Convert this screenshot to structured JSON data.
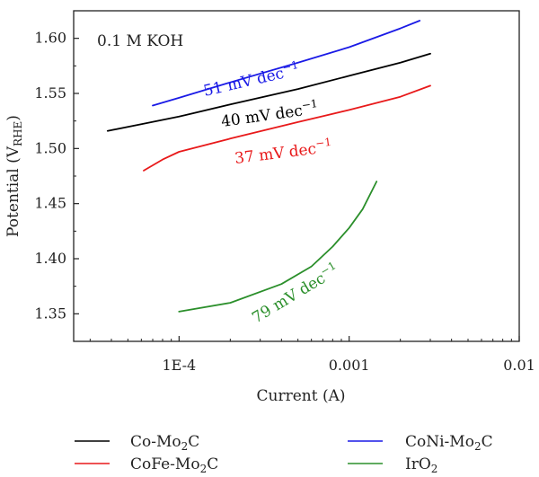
{
  "chart_data": {
    "type": "line",
    "xscale": "log",
    "xlabel": "Current (A)",
    "ylabel": "Potential (V",
    "ylabel_sub": "RHE",
    "ylabel_end": ")",
    "xlim": [
      2.4e-05,
      0.01
    ],
    "ylim": [
      1.325,
      1.625
    ],
    "x_ticks": [
      {
        "value": 0.0001,
        "label": "1E-4"
      },
      {
        "value": 0.001,
        "label": "0.001"
      },
      {
        "value": 0.01,
        "label": "0.01"
      }
    ],
    "y_ticks": [
      {
        "value": 1.35,
        "label": "1.35"
      },
      {
        "value": 1.4,
        "label": "1.40"
      },
      {
        "value": 1.45,
        "label": "1.45"
      },
      {
        "value": 1.5,
        "label": "1.50"
      },
      {
        "value": 1.55,
        "label": "1.55"
      },
      {
        "value": 1.6,
        "label": "1.60"
      }
    ],
    "electrolyte_label": "0.1 M KOH",
    "series": [
      {
        "name": "Co-Mo",
        "name_sub": "2",
        "name_end": "C",
        "color": "#000000",
        "tafel_slope": "40 mV dec",
        "x": [
          3.8e-05,
          6e-05,
          0.0001,
          0.0002,
          0.0005,
          0.001,
          0.002,
          0.003
        ],
        "y": [
          1.516,
          1.522,
          1.529,
          1.54,
          1.554,
          1.566,
          1.578,
          1.586
        ]
      },
      {
        "name": "CoFe-Mo",
        "name_sub": "2",
        "name_end": "C",
        "color": "#e8191a",
        "tafel_slope": "37 mV dec",
        "x": [
          6.2e-05,
          8e-05,
          0.0001,
          0.0002,
          0.0005,
          0.001,
          0.002,
          0.003
        ],
        "y": [
          1.48,
          1.49,
          1.497,
          1.509,
          1.524,
          1.535,
          1.547,
          1.557
        ]
      },
      {
        "name": "CoNi-Mo",
        "name_sub": "2",
        "name_end": "C",
        "color": "#1a1ae6",
        "tafel_slope": "51 mV dec",
        "x": [
          7e-05,
          0.0001,
          0.0002,
          0.0005,
          0.001,
          0.002,
          0.0026
        ],
        "y": [
          1.539,
          1.546,
          1.56,
          1.578,
          1.592,
          1.609,
          1.616
        ]
      },
      {
        "name": "IrO",
        "name_sub": "2",
        "name_end": "",
        "color": "#2b8f2b",
        "tafel_slope": "79 mV dec",
        "x": [
          0.0001,
          0.0002,
          0.0004,
          0.0006,
          0.0008,
          0.001,
          0.0012,
          0.00145
        ],
        "y": [
          1.352,
          1.36,
          1.377,
          1.393,
          1.411,
          1.428,
          1.445,
          1.47
        ]
      }
    ],
    "annotation_superscript": "−1"
  }
}
